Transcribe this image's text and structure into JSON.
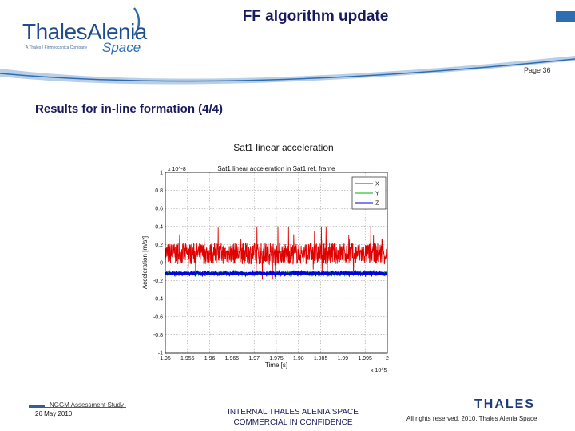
{
  "header": {
    "logo_text": "ThalesAlenia",
    "logo_tagline": "A Thales / Finmeccanica Company",
    "logo_space": "Space",
    "title": "FF algorithm update",
    "page": "Page 36"
  },
  "section_title": "Results for in-line formation (4/4)",
  "chart_caption": "Sat1 linear acceleration",
  "footer": {
    "study": "NGGM Assessment Study",
    "date": "26 May 2010",
    "confidentiality_line1": "INTERNAL THALES ALENIA SPACE",
    "confidentiality_line2": "COMMERCIAL IN CONFIDENCE",
    "rights": "All rights reserved, 2010, Thales Alenia Space",
    "thales_logo": "THALES"
  },
  "colors": {
    "brand_blue": "#1f4e8c",
    "title_navy": "#1a1a5e",
    "series_x": "#e00000",
    "series_y": "#00b000",
    "series_z": "#0000e0"
  },
  "chart_data": {
    "type": "line",
    "title": "Sat1 linear acceleration in Sat1 ref. frame",
    "xlabel": "Time [s]",
    "ylabel": "Acceleration [m/s²]",
    "x_multiplier": "x 10^5",
    "y_multiplier": "x 10^-8",
    "xlim": [
      1.95,
      2.0
    ],
    "ylim": [
      -1.0,
      1.0
    ],
    "xticks": [
      "1.95",
      "1.955",
      "1.96",
      "1.965",
      "1.97",
      "1.975",
      "1.98",
      "1.985",
      "1.99",
      "1.995",
      "2"
    ],
    "yticks": [
      "-1",
      "-0.8",
      "-0.6",
      "-0.4",
      "-0.2",
      "0",
      "0.2",
      "0.4",
      "0.6",
      "0.8",
      "1"
    ],
    "grid": true,
    "legend_position": "top-right",
    "series": [
      {
        "name": "X",
        "color": "#e00000",
        "center": 0.1,
        "amplitude": 0.12,
        "peak": 0.4,
        "trough": -0.28
      },
      {
        "name": "Y",
        "color": "#00b000",
        "center": -0.12,
        "amplitude": 0.015,
        "peak": -0.1,
        "trough": -0.14
      },
      {
        "name": "Z",
        "color": "#0000e0",
        "center": -0.12,
        "amplitude": 0.02,
        "peak": -0.09,
        "trough": -0.15
      }
    ]
  }
}
